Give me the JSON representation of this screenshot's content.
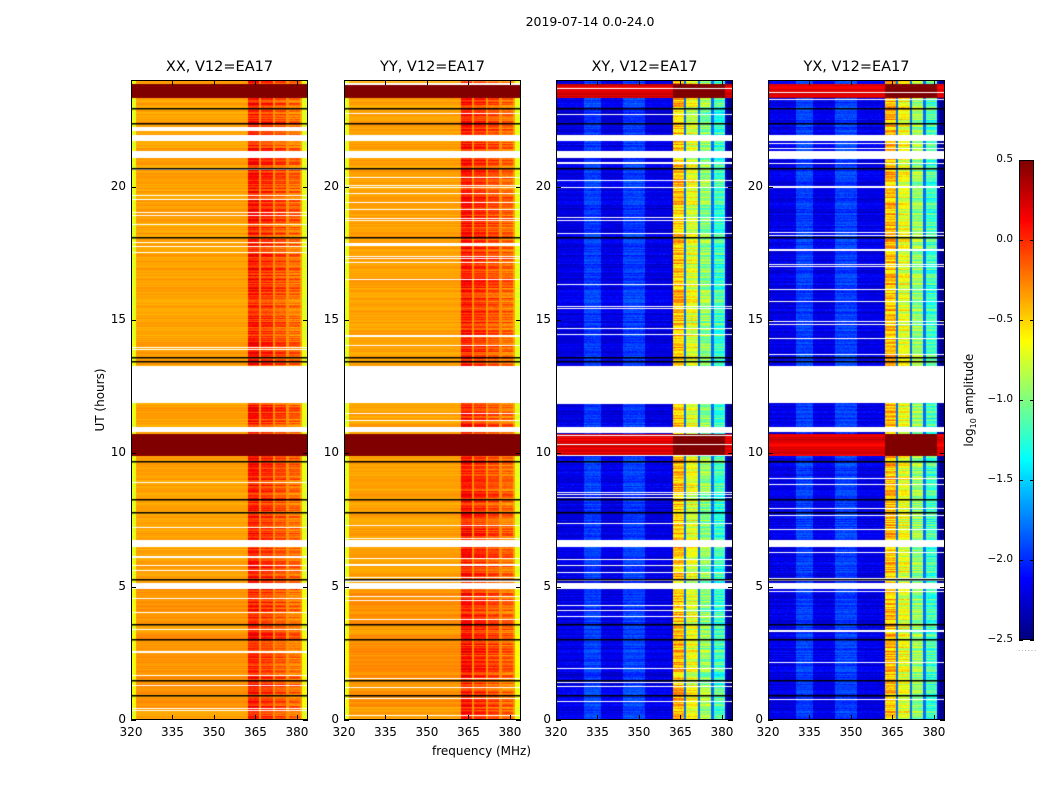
{
  "chart_data": {
    "type": "heatmap",
    "title": "2019-07-14 0.0-24.0",
    "xlabel": "frequency (MHz)",
    "ylabel": "UT (hours)",
    "xlim": [
      320,
      384
    ],
    "ylim": [
      0,
      24
    ],
    "xticks": [
      320,
      335,
      350,
      365,
      380
    ],
    "xtick_labels": [
      "320",
      "335",
      "350",
      "365",
      "380"
    ],
    "yticks": [
      0,
      5,
      10,
      15,
      20
    ],
    "ytick_labels": [
      "0",
      "5",
      "10",
      "15",
      "20"
    ],
    "panels": [
      {
        "id": "xx",
        "title": "XX, V12=EA17",
        "kind": "parallel"
      },
      {
        "id": "yy",
        "title": "YY, V12=EA17",
        "kind": "parallel"
      },
      {
        "id": "xy",
        "title": "XY, V12=EA17",
        "kind": "cross"
      },
      {
        "id": "yx",
        "title": "YX, V12=EA17",
        "kind": "cross"
      }
    ],
    "colorbar": {
      "label_prefix": "log",
      "label_sub": "10",
      "label_suffix": " amplitude",
      "colormap": "jet",
      "range": [
        -2.5,
        0.5
      ],
      "ticks": [
        0.5,
        0.0,
        -0.5,
        -1.0,
        -1.5,
        -2.0,
        -2.5
      ],
      "tick_labels": [
        "0.5",
        "0.0",
        "−0.5",
        "−1.0",
        "−1.5",
        "−2.0",
        "−2.5"
      ],
      "extra_text": "......"
    },
    "features": {
      "parallel_background_log_amp": -0.35,
      "cross_background_log_amp": -2.2,
      "hot_band_mhz": [
        362,
        381
      ],
      "hot_subbands_mhz": [
        [
          362,
          366
        ],
        [
          367,
          371
        ],
        [
          372,
          376
        ],
        [
          377,
          381
        ]
      ],
      "rfi_bursts_hours": [
        [
          9.9,
          10.75
        ],
        [
          23.35,
          23.85
        ]
      ],
      "flagged_gaps_hours": [
        [
          11.9,
          13.3
        ],
        [
          21.1,
          21.35
        ],
        [
          21.75,
          21.95
        ],
        [
          10.8,
          11.0
        ],
        [
          6.5,
          6.75
        ],
        [
          4.95,
          5.15
        ]
      ],
      "black_lines_hours": [
        0.95,
        1.5,
        3.6,
        3.05,
        5.3,
        7.8,
        8.3,
        9.7,
        13.45,
        13.6,
        18.1,
        20.7,
        22.4,
        22.95
      ]
    }
  }
}
